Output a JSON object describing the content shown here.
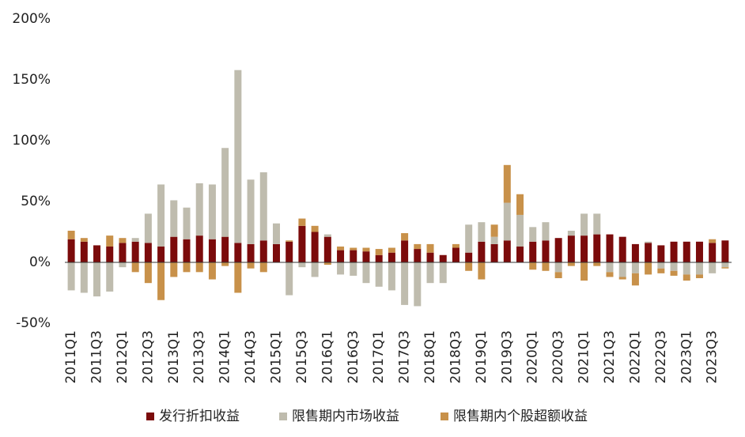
{
  "chart_data": {
    "type": "stacked-bar",
    "categories": [
      "2011Q1",
      null,
      "2011Q3",
      null,
      "2012Q1",
      null,
      "2012Q3",
      null,
      "2013Q1",
      null,
      "2013Q3",
      null,
      "2014Q1",
      null,
      "2014Q3",
      null,
      "2015Q1",
      null,
      "2015Q3",
      null,
      "2016Q1",
      null,
      "2016Q3",
      null,
      "2017Q1",
      null,
      "2017Q3",
      null,
      "2018Q1",
      null,
      "2018Q3",
      null,
      "2019Q1",
      null,
      "2019Q3",
      null,
      "2020Q1",
      null,
      "2020Q3",
      null,
      "2021Q1",
      null,
      "2021Q3",
      null,
      "2022Q1",
      null,
      "2022Q3",
      null,
      "2023Q1",
      null,
      "2023Q3",
      null
    ],
    "series": [
      {
        "name": "发行折扣收益",
        "color": "#7b0b0b",
        "values": [
          19,
          17,
          14,
          13,
          16,
          17,
          16,
          13,
          21,
          19,
          22,
          19,
          21,
          16,
          15,
          18,
          15,
          17,
          30,
          25,
          21,
          10,
          10,
          9,
          6,
          8,
          18,
          11,
          8,
          6,
          12,
          8,
          17,
          15,
          18,
          13,
          17,
          18,
          20,
          22,
          22,
          23,
          23,
          21,
          15,
          16,
          14,
          17,
          17,
          17,
          16,
          18
        ]
      },
      {
        "name": "限售期内市场收益",
        "color": "#bfbcae",
        "values": [
          -23,
          -25,
          -28,
          -24,
          -4,
          3,
          24,
          51,
          30,
          26,
          43,
          45,
          73,
          142,
          53,
          56,
          17,
          -27,
          -4,
          -12,
          2,
          -10,
          -11,
          -17,
          -20,
          -23,
          -35,
          -36,
          -17,
          -17,
          0,
          23,
          16,
          6,
          31,
          26,
          12,
          15,
          -8,
          4,
          18,
          17,
          -8,
          -12,
          -9,
          1,
          -5,
          -7,
          -10,
          -10,
          -9,
          -4
        ]
      },
      {
        "name": "限售期内个股超额收益",
        "color": "#c8914a",
        "values": [
          7,
          3,
          0,
          9,
          4,
          -8,
          -17,
          -31,
          -12,
          -8,
          -8,
          -14,
          -3,
          -25,
          -5,
          -8,
          0,
          1,
          6,
          5,
          -2,
          3,
          2,
          3,
          5,
          4,
          6,
          4,
          7,
          0,
          3,
          -7,
          -14,
          10,
          31,
          17,
          -6,
          -7,
          -5,
          -3,
          -15,
          -3,
          -4,
          -2,
          -10,
          -10,
          -4,
          -4,
          -5,
          -3,
          3,
          -1
        ]
      }
    ],
    "ylim": [
      -50,
      200
    ],
    "yticks": [
      {
        "value": -50,
        "label": "-50%"
      },
      {
        "value": 0,
        "label": "0%"
      },
      {
        "value": 50,
        "label": "50%"
      },
      {
        "value": 100,
        "label": "100%"
      },
      {
        "value": 150,
        "label": "150%"
      },
      {
        "value": 200,
        "label": "200%"
      }
    ]
  }
}
